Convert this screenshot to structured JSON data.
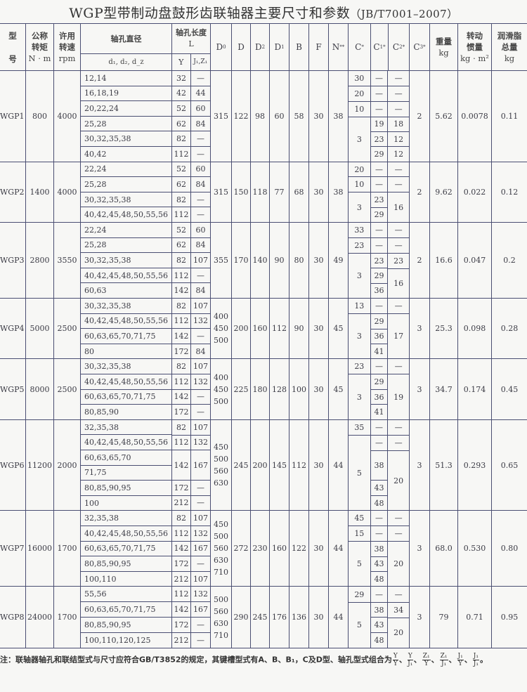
{
  "title": {
    "main": "WGP型带制动盘鼓形齿联轴器主要尺寸和参数",
    "standard": "（JB/T7001–2007）"
  },
  "header": {
    "model": {
      "top": "型",
      "bottom": "号"
    },
    "torque": {
      "top": "公称",
      "mid": "转矩",
      "unit": "N · m"
    },
    "speed": {
      "top": "许用",
      "mid": "转速",
      "unit": "rpm"
    },
    "bore": {
      "top": "轴孔直径",
      "bottom": "d₁, d₂, d_z"
    },
    "length": {
      "top": "轴孔长度",
      "mid": "L",
      "y": "Y",
      "j": "J₁,Z₁"
    },
    "dims": [
      {
        "t": "D",
        "sub": "0",
        "sup": ""
      },
      {
        "t": "D",
        "sub": "",
        "sup": ""
      },
      {
        "t": "D",
        "sub": "2",
        "sup": ""
      },
      {
        "t": "D",
        "sub": "1",
        "sup": ""
      },
      {
        "t": "B",
        "sub": "",
        "sup": ""
      },
      {
        "t": "F",
        "sub": "",
        "sup": ""
      },
      {
        "t": "N",
        "sub": "",
        "sup": "**"
      },
      {
        "t": "C",
        "sub": "",
        "sup": "*"
      },
      {
        "t": "C",
        "sub": "1",
        "sup": "*"
      },
      {
        "t": "C",
        "sub": "2",
        "sup": "*"
      },
      {
        "t": "C",
        "sub": "3",
        "sup": "*"
      }
    ],
    "weight": {
      "top": "重量",
      "unit": "kg"
    },
    "inertia": {
      "top": "转动",
      "mid": "惯量",
      "unit": "kg · m²"
    },
    "grease": {
      "top": "润滑脂",
      "mid": "总量",
      "unit": "kg"
    }
  },
  "groups": [
    {
      "model": "WGP1",
      "torque": "800",
      "speed": "4000",
      "bores": [
        "12,14",
        "16,18,19",
        "20,22,24",
        "25,28",
        "30,32,35,38",
        "40,42"
      ],
      "lengths": [
        {
          "y": "32",
          "j": "—",
          "span": 1
        },
        {
          "y": "42",
          "j": "44",
          "span": 1
        },
        {
          "y": "52",
          "j": "60",
          "span": 1
        },
        {
          "y": "62",
          "j": "84",
          "span": 1
        },
        {
          "y": "82",
          "j": "—",
          "span": 1
        },
        {
          "y": "112",
          "j": "—",
          "span": 1
        }
      ],
      "d0": [
        "315"
      ],
      "d": "122",
      "d2": "98",
      "d1": "60",
      "b": "58",
      "f": "30",
      "n": "38",
      "c_segments": [
        {
          "c": "30",
          "c1": [
            {
              "v": "—",
              "span": 1
            }
          ],
          "c2": [
            {
              "v": "—",
              "span": 1
            }
          ]
        },
        {
          "c": "20",
          "c1": [
            {
              "v": "—",
              "span": 1
            }
          ],
          "c2": [
            {
              "v": "—",
              "span": 1
            }
          ]
        },
        {
          "c": "10",
          "c1": [
            {
              "v": "—",
              "span": 1
            }
          ],
          "c2": [
            {
              "v": "—",
              "span": 1
            }
          ]
        },
        {
          "c": "3",
          "c1": [
            {
              "v": "19",
              "span": 1
            },
            {
              "v": "23",
              "span": 1
            },
            {
              "v": "29",
              "span": 1
            }
          ],
          "c2": [
            {
              "v": "18",
              "span": 1
            },
            {
              "v": "12",
              "span": 1
            },
            {
              "v": "12",
              "span": 1
            }
          ]
        }
      ],
      "c3": "2",
      "weight": "5.62",
      "inertia": "0.0078",
      "grease": "0.11"
    },
    {
      "model": "WGP2",
      "torque": "1400",
      "speed": "4000",
      "bores": [
        "22,24",
        "25,28",
        "30,32,35,38",
        "40,42,45,48,50,55,56"
      ],
      "lengths": [
        {
          "y": "52",
          "j": "60",
          "span": 1
        },
        {
          "y": "62",
          "j": "84",
          "span": 1
        },
        {
          "y": "82",
          "j": "—",
          "span": 1
        },
        {
          "y": "112",
          "j": "—",
          "span": 1
        }
      ],
      "d0": [
        "315"
      ],
      "d": "150",
      "d2": "118",
      "d1": "77",
      "b": "68",
      "f": "30",
      "n": "38",
      "c_segments": [
        {
          "c": "20",
          "c1": [
            {
              "v": "—",
              "span": 1
            }
          ],
          "c2": [
            {
              "v": "—",
              "span": 1
            }
          ]
        },
        {
          "c": "10",
          "c1": [
            {
              "v": "—",
              "span": 1
            }
          ],
          "c2": [
            {
              "v": "—",
              "span": 1
            }
          ]
        },
        {
          "c": "3",
          "c1": [
            {
              "v": "23",
              "span": 1
            },
            {
              "v": "29",
              "span": 1
            }
          ],
          "c2": [
            {
              "v": "16",
              "span": 2
            }
          ]
        }
      ],
      "c3": "2",
      "weight": "9.62",
      "inertia": "0.022",
      "grease": "0.12"
    },
    {
      "model": "WGP3",
      "torque": "2800",
      "speed": "3550",
      "bores": [
        "22,24",
        "25,28",
        "30,32,35,38",
        "40,42,45,48,50,55,56",
        "60,63"
      ],
      "lengths": [
        {
          "y": "52",
          "j": "60",
          "span": 1
        },
        {
          "y": "62",
          "j": "84",
          "span": 1
        },
        {
          "y": "82",
          "j": "107",
          "span": 1
        },
        {
          "y": "112",
          "j": "—",
          "span": 1
        },
        {
          "y": "142",
          "j": "84",
          "span": 1
        }
      ],
      "d0": [
        "355"
      ],
      "d": "170",
      "d2": "140",
      "d1": "90",
      "b": "80",
      "f": "30",
      "n": "49",
      "c_segments": [
        {
          "c": "33",
          "c1": [
            {
              "v": "—",
              "span": 1
            }
          ],
          "c2": [
            {
              "v": "—",
              "span": 1
            }
          ]
        },
        {
          "c": "23",
          "c1": [
            {
              "v": "—",
              "span": 1
            }
          ],
          "c2": [
            {
              "v": "—",
              "span": 1
            }
          ]
        },
        {
          "c": "3",
          "c1": [
            {
              "v": "23",
              "span": 1
            },
            {
              "v": "29",
              "span": 1
            },
            {
              "v": "36",
              "span": 1
            }
          ],
          "c2": [
            {
              "v": "23",
              "span": 1
            },
            {
              "v": "16",
              "span": 2
            }
          ]
        }
      ],
      "c3": "2",
      "weight": "16.6",
      "inertia": "0.047",
      "grease": "0.2"
    },
    {
      "model": "WGP4",
      "torque": "5000",
      "speed": "2500",
      "bores": [
        "30,32,35,38",
        "40,42,45,48,50,55,56",
        "60,63,65,70,71,75",
        "80"
      ],
      "lengths": [
        {
          "y": "82",
          "j": "107",
          "span": 1
        },
        {
          "y": "112",
          "j": "132",
          "span": 1
        },
        {
          "y": "142",
          "j": "—",
          "span": 1
        },
        {
          "y": "172",
          "j": "84",
          "span": 1
        }
      ],
      "d0": [
        "400",
        "450",
        "500"
      ],
      "d": "200",
      "d2": "160",
      "d1": "112",
      "b": "90",
      "f": "30",
      "n": "45",
      "c_segments": [
        {
          "c": "13",
          "c1": [
            {
              "v": "—",
              "span": 1
            }
          ],
          "c2": [
            {
              "v": "—",
              "span": 1
            }
          ]
        },
        {
          "c": "3",
          "c1": [
            {
              "v": "29",
              "span": 1
            },
            {
              "v": "36",
              "span": 1
            },
            {
              "v": "41",
              "span": 1
            }
          ],
          "c2": [
            {
              "v": "17",
              "span": 3
            }
          ]
        }
      ],
      "c3": "3",
      "weight": "25.3",
      "inertia": "0.098",
      "grease": "0.28"
    },
    {
      "model": "WGP5",
      "torque": "8000",
      "speed": "2500",
      "bores": [
        "30,32,35,38",
        "40,42,45,48,50,55,56",
        "60,63,65,70,71,75",
        "80,85,90"
      ],
      "lengths": [
        {
          "y": "82",
          "j": "107",
          "span": 1
        },
        {
          "y": "112",
          "j": "132",
          "span": 1
        },
        {
          "y": "142",
          "j": "—",
          "span": 1
        },
        {
          "y": "172",
          "j": "—",
          "span": 1
        }
      ],
      "d0": [
        "400",
        "450",
        "500"
      ],
      "d": "225",
      "d2": "180",
      "d1": "128",
      "b": "100",
      "f": "30",
      "n": "45",
      "c_segments": [
        {
          "c": "23",
          "c1": [
            {
              "v": "—",
              "span": 1
            }
          ],
          "c2": [
            {
              "v": "—",
              "span": 1
            }
          ]
        },
        {
          "c": "3",
          "c1": [
            {
              "v": "29",
              "span": 1
            },
            {
              "v": "36",
              "span": 1
            },
            {
              "v": "41",
              "span": 1
            }
          ],
          "c2": [
            {
              "v": "19",
              "span": 3
            }
          ]
        }
      ],
      "c3": "3",
      "weight": "34.7",
      "inertia": "0.174",
      "grease": "0.45"
    },
    {
      "model": "WGP6",
      "torque": "11200",
      "speed": "2000",
      "bores": [
        "32,35,38",
        "40,42,45,48,50,55,56",
        "60,63,65,70",
        "71,75",
        "80,85,90,95",
        "100"
      ],
      "lengths": [
        {
          "y": "82",
          "j": "107",
          "span": 1
        },
        {
          "y": "112",
          "j": "132",
          "span": 1
        },
        {
          "y": "142",
          "j": "167",
          "span": 2
        },
        {
          "y": "172",
          "j": "—",
          "span": 1
        },
        {
          "y": "212",
          "j": "—",
          "span": 1
        }
      ],
      "d0": [
        "450",
        "500",
        "560",
        "630"
      ],
      "d": "245",
      "d2": "200",
      "d1": "145",
      "b": "112",
      "f": "30",
      "n": "44",
      "c_segments": [
        {
          "c": "35",
          "c1": [
            {
              "v": "—",
              "span": 1
            }
          ],
          "c2": [
            {
              "v": "—",
              "span": 1
            }
          ]
        },
        {
          "c": "5",
          "c1": [
            {
              "v": "—",
              "span": 1
            },
            {
              "v": "38",
              "span": 2
            },
            {
              "v": "43",
              "span": 1
            },
            {
              "v": "48",
              "span": 1
            }
          ],
          "c2": [
            {
              "v": "—",
              "span": 1
            },
            {
              "v": "20",
              "span": 4
            }
          ]
        }
      ],
      "c3": "3",
      "weight": "51.3",
      "inertia": "0.293",
      "grease": "0.65"
    },
    {
      "model": "WGP7",
      "torque": "16000",
      "speed": "1700",
      "bores": [
        "32,35,38",
        "40,42,45,48,50,55,56",
        "60,63,65,70,71,75",
        "80,85,90,95",
        "100,110"
      ],
      "lengths": [
        {
          "y": "82",
          "j": "107",
          "span": 1
        },
        {
          "y": "112",
          "j": "132",
          "span": 1
        },
        {
          "y": "142",
          "j": "167",
          "span": 1
        },
        {
          "y": "172",
          "j": "—",
          "span": 1
        },
        {
          "y": "212",
          "j": "107",
          "span": 1
        }
      ],
      "d0": [
        "450",
        "500",
        "560",
        "630",
        "710"
      ],
      "d": "272",
      "d2": "230",
      "d1": "160",
      "b": "122",
      "f": "30",
      "n": "44",
      "c_segments": [
        {
          "c": "45",
          "c1": [
            {
              "v": "—",
              "span": 1
            }
          ],
          "c2": [
            {
              "v": "—",
              "span": 1
            }
          ]
        },
        {
          "c": "15",
          "c1": [
            {
              "v": "—",
              "span": 1
            }
          ],
          "c2": [
            {
              "v": "—",
              "span": 1
            }
          ]
        },
        {
          "c": "5",
          "c1": [
            {
              "v": "38",
              "span": 1
            },
            {
              "v": "43",
              "span": 1
            },
            {
              "v": "48",
              "span": 1
            }
          ],
          "c2": [
            {
              "v": "20",
              "span": 3
            }
          ]
        }
      ],
      "c3": "3",
      "weight": "68.0",
      "inertia": "0.530",
      "grease": "0.80"
    },
    {
      "model": "WGP8",
      "torque": "24000",
      "speed": "1700",
      "bores": [
        "55,56",
        "60,63,65,70,71,75",
        "80,85,90,95",
        "100,110,120,125"
      ],
      "lengths": [
        {
          "y": "112",
          "j": "132",
          "span": 1
        },
        {
          "y": "142",
          "j": "167",
          "span": 1
        },
        {
          "y": "172",
          "j": "—",
          "span": 1
        },
        {
          "y": "212",
          "j": "—",
          "span": 1
        }
      ],
      "d0": [
        "500",
        "560",
        "630",
        "710"
      ],
      "d": "290",
      "d2": "245",
      "d1": "176",
      "b": "136",
      "f": "30",
      "n": "44",
      "c_segments": [
        {
          "c": "29",
          "c1": [
            {
              "v": "—",
              "span": 1
            }
          ],
          "c2": [
            {
              "v": "—",
              "span": 1
            }
          ]
        },
        {
          "c": "5",
          "c1": [
            {
              "v": "38",
              "span": 1
            },
            {
              "v": "43",
              "span": 1
            },
            {
              "v": "48",
              "span": 1
            }
          ],
          "c2": [
            {
              "v": "34",
              "span": 1
            },
            {
              "v": "20",
              "span": 2
            }
          ]
        }
      ],
      "c3": "3",
      "weight": "79",
      "inertia": "0.71",
      "grease": "0.95"
    }
  ],
  "note": {
    "text": "注：联轴器轴孔和联结型式与尺寸应符合GB/T3852的规定，其键槽型式有A、B、B₁，C及D型、轴孔型式组合为",
    "combos": [
      {
        "num": "Y",
        "den": "Y"
      },
      {
        "num": "Y",
        "den": "J₁"
      },
      {
        "num": "Z₁",
        "den": "Y"
      },
      {
        "num": "Z₁",
        "den": "J₁"
      },
      {
        "num": "J₁",
        "den": "Y"
      },
      {
        "num": "J₁",
        "den": "J₁"
      }
    ],
    "end": "。"
  }
}
